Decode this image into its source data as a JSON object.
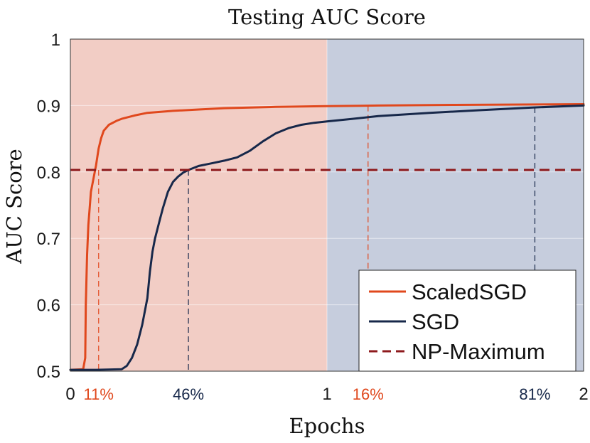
{
  "chart_data": {
    "type": "line",
    "title": "Testing AUC Score",
    "xlabel": "Epochs",
    "ylabel": "AUC Score",
    "xlim": [
      0,
      2
    ],
    "ylim": [
      0.5,
      1
    ],
    "x_ticks": [
      {
        "value": 0,
        "label": "0"
      },
      {
        "value": 1,
        "label": "1"
      },
      {
        "value": 2,
        "label": "2"
      }
    ],
    "y_ticks": [
      {
        "value": 0.5,
        "label": "0.5"
      },
      {
        "value": 0.6,
        "label": "0.6"
      },
      {
        "value": 0.7,
        "label": "0.7"
      },
      {
        "value": 0.8,
        "label": "0.8"
      },
      {
        "value": 0.9,
        "label": "0.9"
      },
      {
        "value": 1,
        "label": "1"
      }
    ],
    "grid": true,
    "regions": [
      {
        "x": [
          0,
          1
        ],
        "color": "#f2cdc5"
      },
      {
        "x": [
          1,
          2
        ],
        "color": "#c6cddd"
      }
    ],
    "series": [
      {
        "name": "ScaledSGD",
        "color": "#e0481d",
        "style": "solid",
        "x": [
          0,
          0.05,
          0.058,
          0.06,
          0.065,
          0.07,
          0.075,
          0.08,
          0.09,
          0.1,
          0.11,
          0.12,
          0.13,
          0.15,
          0.18,
          0.2,
          0.25,
          0.3,
          0.4,
          0.5,
          0.6,
          0.8,
          1.0,
          1.2,
          1.5,
          2.0
        ],
        "y": [
          0.502,
          0.503,
          0.52,
          0.6,
          0.675,
          0.72,
          0.745,
          0.77,
          0.79,
          0.81,
          0.835,
          0.851,
          0.862,
          0.871,
          0.877,
          0.88,
          0.885,
          0.889,
          0.892,
          0.894,
          0.896,
          0.898,
          0.899,
          0.9,
          0.901,
          0.902
        ]
      },
      {
        "name": "SGD",
        "color": "#17284a",
        "style": "solid",
        "x": [
          0,
          0.1,
          0.2,
          0.22,
          0.24,
          0.26,
          0.28,
          0.3,
          0.31,
          0.32,
          0.33,
          0.35,
          0.36,
          0.38,
          0.4,
          0.42,
          0.44,
          0.46,
          0.5,
          0.55,
          0.6,
          0.65,
          0.7,
          0.75,
          0.8,
          0.85,
          0.9,
          0.95,
          1.0,
          1.1,
          1.2,
          1.4,
          1.6,
          1.8,
          2.0
        ],
        "y": [
          0.502,
          0.502,
          0.503,
          0.508,
          0.52,
          0.54,
          0.57,
          0.61,
          0.65,
          0.68,
          0.7,
          0.73,
          0.745,
          0.77,
          0.785,
          0.793,
          0.799,
          0.803,
          0.809,
          0.813,
          0.817,
          0.822,
          0.832,
          0.846,
          0.858,
          0.866,
          0.871,
          0.874,
          0.876,
          0.88,
          0.884,
          0.889,
          0.893,
          0.897,
          0.9
        ]
      },
      {
        "name": "NP-Maximum",
        "color": "#8e1a1d",
        "style": "dashed",
        "x": [
          0,
          2
        ],
        "y": [
          0.803,
          0.803
        ]
      }
    ],
    "markers": [
      {
        "x": 0.11,
        "label": "11%",
        "color": "#e0481d"
      },
      {
        "x": 0.46,
        "label": "46%",
        "color": "#17284a"
      },
      {
        "x": 1.16,
        "label": "16%",
        "color": "#e0481d"
      },
      {
        "x": 1.81,
        "label": "81%",
        "color": "#17284a"
      }
    ],
    "legend": "bottom-right"
  }
}
